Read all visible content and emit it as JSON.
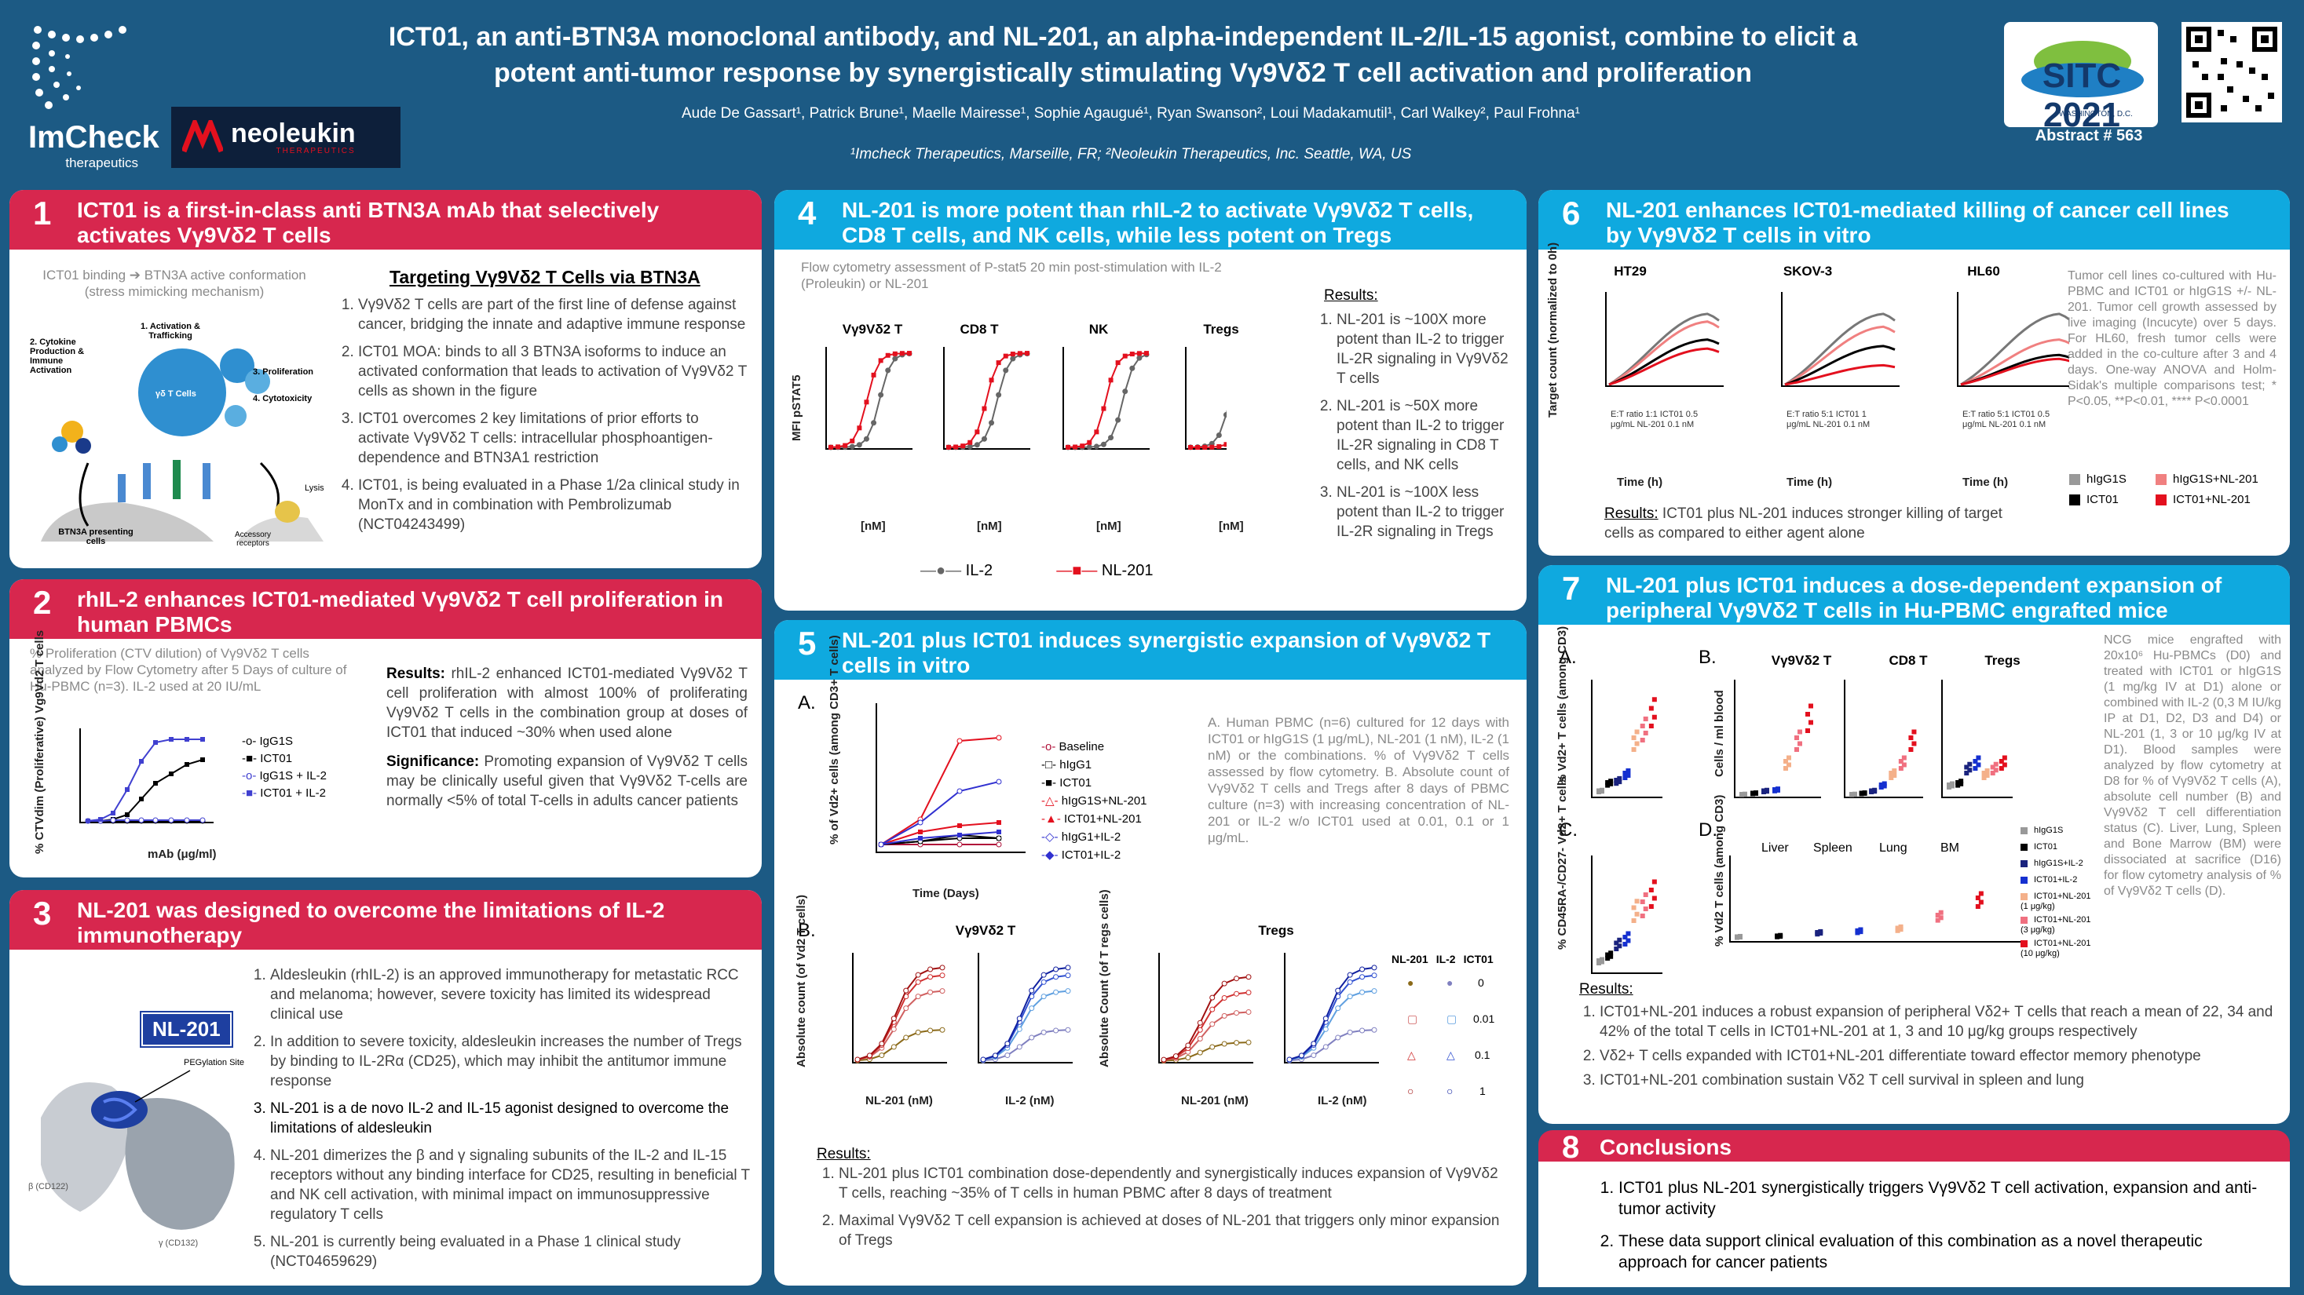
{
  "header": {
    "logo_left": "ImCheck",
    "logo_left_sub": "therapeutics",
    "logo_partner": "neoleukin",
    "logo_partner_sub": "THERAPEUTICS",
    "title_line1": "ICT01, an anti-BTN3A monoclonal antibody, and NL-201, an alpha-independent IL-2/IL-15 agonist, combine to elicit a",
    "title_line2": "potent anti-tumor response by synergistically stimulating Vγ9Vδ2 T cell activation and proliferation",
    "authors": "Aude De Gassart¹, Patrick Brune¹, Maelle Mairesse¹, Sophie Agaugué¹, Ryan Swanson², Loui Madakamutil¹, Carl Walkey², Paul Frohna¹",
    "affiliations": "¹Imcheck Therapeutics, Marseille, FR; ²Neoleukin Therapeutics,  Inc. Seattle, WA, US",
    "sitc_logo": "SITC 2021",
    "sitc_sub": "WASHINGTON, D.C.",
    "abstract": "Abstract # 563"
  },
  "colors": {
    "red": "#d7274e",
    "cyan": "#0fa9df",
    "bg": "#1c5a84",
    "series_il2": "#666666",
    "series_nl201": "#e3101e"
  },
  "p1": {
    "num": "1",
    "title": "ICT01 is a first-in-class anti BTN3A mAb that selectively activates Vγ9Vδ2 T cells",
    "fig_caption": "ICT01 binding ➔ BTN3A active conformation",
    "fig_caption2": "(stress mimicking mechanism)",
    "fig_labels": [
      "1. Activation & Trafficking",
      "2. Cytokine Production & Immune Activation",
      "3. Proliferation",
      "4. Cytotoxicity",
      "γδ T Cells",
      "BTN3A presenting cells",
      "Lysis",
      "Accessory receptors"
    ],
    "subhead": "Targeting Vγ9Vδ2 T Cells via BTN3A",
    "items": [
      "Vγ9Vδ2 T cells are part of the first line of defense against cancer, bridging the innate and adaptive immune response",
      " ICT01 MOA: binds to all 3 BTN3A isoforms to induce an activated conformation that leads to activation of Vγ9Vδ2 T cells as shown in the figure",
      "ICT01 overcomes 2 key limitations of prior efforts to activate Vγ9Vδ2 T cells: intracellular phosphoantigen-dependence and BTN3A1 restriction",
      "ICT01, is being evaluated in a Phase 1/2a clinical study in MonTx and in combination with Pembrolizumab (NCT04243499)"
    ]
  },
  "p2": {
    "num": "2",
    "title": "rhIL-2 enhances ICT01-mediated Vγ9Vδ2 T cell proliferation in human PBMCs",
    "caption": "% Proliferation (CTV dilution) of Vγ9Vδ2 T cells analyzed by Flow Cytometry after 5 Days of culture of Hu-PBMC (n=3). IL-2 used at 20 IU/mL",
    "ylabel": "% CTVdim (Proliferative) Vg9Vd2 T cells",
    "xlabel": "mAb (μg/ml)",
    "results_label": "Results:",
    "results": "rhIL-2 enhanced ICT01-mediated Vγ9Vδ2 T cell proliferation with almost 100% of proliferating Vγ9Vδ2 T cells in the combination group at doses of ICT01 that induced ~30% when used alone",
    "sig_label": "Significance:",
    "sig": "Promoting expansion of Vγ9Vδ2 T cells may be clinically useful given that Vγ9Vδ2 T-cells are normally <5% of total T-cells in adults cancer patients",
    "legend": [
      "IgG1S",
      "ICT01",
      "IgG1S + IL-2",
      "ICT01 + IL-2"
    ]
  },
  "p3": {
    "num": "3",
    "title": "NL-201 was designed to overcome the limitations of IL-2 immunotherapy",
    "badge": "NL-201",
    "site_label": "PEGylation Site",
    "beta": "β (CD122)",
    "gamma": "γ (CD132)",
    "items": [
      "Aldesleukin (rhIL-2) is an approved immunotherapy for metastatic RCC and melanoma; however, severe toxicity has limited its widespread clinical use",
      "In addition to severe toxicity, aldesleukin increases the number of Tregs by binding to IL-2Rα (CD25), which may inhibit the antitumor immune response",
      "NL-201 is a de novo IL-2 and IL-15 agonist designed to overcome the limitations of aldesleukin",
      "NL-201 dimerizes the β and γ signaling subunits of the IL-2 and IL-15 receptors without any binding interface for CD25, resulting in beneficial T and NK cell activation, with minimal impact on immunosuppressive regulatory T cells",
      "NL-201 is currently being evaluated in a Phase 1 clinical study (NCT04659629)"
    ]
  },
  "p4": {
    "num": "4",
    "title": "NL-201 is more potent than rhIL-2 to activate Vγ9Vδ2 T cells, CD8 T cells, and NK cells, while less potent on Tregs",
    "caption": "Flow cytometry assessment of P-stat5 20 min post-stimulation with IL-2 (Proleukin) or NL-201",
    "panels": [
      "Vγ9Vδ2 T",
      "CD8 T",
      "NK",
      "Tregs"
    ],
    "ylabel": "MFI pSTAT5",
    "xlabel": "[nM]",
    "xticks": [
      "0.0001",
      "0.01",
      "1",
      "100",
      "10000"
    ],
    "yticks_a": [
      "0",
      "1000",
      "2000",
      "3000",
      "4000"
    ],
    "yticks_b": [
      "0",
      "2000",
      "4000",
      "6000",
      "8000"
    ],
    "yticks_c": [
      "0",
      "2000",
      "4000",
      "6000"
    ],
    "yticks_d": [
      "0",
      "5000",
      "10000",
      "15000"
    ],
    "legend": [
      "IL-2",
      "NL-201"
    ],
    "results_label": "Results:",
    "results": [
      "NL-201 is ~100X more potent than IL-2 to trigger IL-2R signaling in Vγ9Vδ2 T cells",
      "NL-201 is ~50X more potent than IL-2 to trigger IL-2R signaling in CD8 T cells, and NK cells",
      "NL-201 is ~100X less potent than IL-2 to trigger IL-2R signaling in Tregs"
    ]
  },
  "p5": {
    "num": "5",
    "title": "NL-201 plus ICT01 induces synergistic expansion of Vγ9Vδ2 T cells in vitro",
    "a_label": "A.",
    "a_ylabel": "% of Vd2+ cells (among CD3+ T cells)",
    "a_xlabel": "Time (Days)",
    "a_legend": [
      "Baseline",
      "hIgG1",
      "ICT01",
      "hIgG1S+NL-201",
      "ICT01+NL-201",
      "hIgG1+IL-2",
      "ICT01+IL-2"
    ],
    "caption": "A. Human PBMC (n=6) cultured for 12 days with ICT01 or hIgG1S (1 μg/mL), NL-201 (1 nM), IL-2 (1 nM) or the combinations. % of Vγ9Vδ2 T cells assessed by flow cytometry. B. Absolute count of Vγ9Vδ2 T cells and Tregs after 8 days of PBMC culture (n=3) with increasing concentration of NL-201 or IL-2 w/o ICT01 used at 0.01, 0.1 or 1 μg/mL.",
    "b_label": "B.",
    "b_titles": [
      "Vγ9Vδ2 T",
      "Tregs"
    ],
    "b_ylabel1": "Absolute count (of Vd2 T cells)",
    "b_ylabel2": "Absolute Count (of T regs cells)",
    "b_xlabels": [
      "NL-201 (nM)",
      "IL-2 (nM)",
      "NL-201 (nM)",
      "IL-2 (nM)"
    ],
    "b_table_header": [
      "NL-201",
      "IL-2",
      "ICT01"
    ],
    "b_table_rows": [
      "0",
      "0.01",
      "0.1",
      "1"
    ],
    "results_label": "Results:",
    "results": [
      "NL-201 plus ICT01 combination dose-dependently and synergistically induces expansion of Vγ9Vδ2 T cells, reaching ~35% of T cells in human PBMC after 8 days of treatment",
      "Maximal Vγ9Vδ2 T cell  expansion is achieved at doses of NL-201 that triggers only minor expansion of Tregs"
    ]
  },
  "p6": {
    "num": "6",
    "title": "NL-201 enhances ICT01-mediated killing of cancer cell lines by Vγ9Vδ2 T cells in vitro",
    "panels": [
      "HT29",
      "SKOV-3",
      "HL60"
    ],
    "ylabel": "Target count (normalized to 0h)",
    "xlabel": "Time (h)",
    "conds": [
      "E:T ratio 1:1 ICT01 0.5 μg/mL NL-201 0.1 nM",
      "E:T ratio 5:1 ICT01 1 μg/mL NL-201 0.1 nM",
      "E:T ratio 5:1 ICT01 0.5 μg/mL NL-201 0.1 nM"
    ],
    "caption": "Tumor cell lines co-cultured with Hu-PBMC and ICT01 or hIgG1S +/- NL-201. Tumor cell growth assessed by live imaging (Incucyte) over 5 days. For HL60, fresh tumor cells were added in the co-culture after 3 and 4 days. One-way ANOVA and Holm-Sidak's multiple comparisons test; * P<0.05, **P<0.01, **** P<0.0001",
    "legend": [
      "hIgG1S",
      "hIgG1S+NL-201",
      "ICT01",
      "ICT01+NL-201"
    ],
    "results_label": "Results:",
    "results": "ICT01 plus NL-201 induces stronger killing of target cells as compared to either agent alone"
  },
  "p7": {
    "num": "7",
    "title": "NL-201 plus ICT01 induces a dose-dependent expansion of peripheral Vγ9Vδ2 T cells in Hu-PBMC engrafted mice",
    "labels": [
      "A.",
      "B.",
      "C.",
      "D."
    ],
    "a_ylabel": "% Vd2+ T cells (among CD3)",
    "b_titles": [
      "Vγ9Vδ2 T",
      "CD8 T",
      "Tregs"
    ],
    "b_ylabel": "Cells / ml blood",
    "c_ylabel": "% CD45RA-/CD27- Vd2+ T cells",
    "d_ylabel": "% Vd2 T cells (among CD3)",
    "d_groups": [
      "Liver",
      "Spleen",
      "Lung",
      "BM"
    ],
    "legend": [
      "hIgG1S",
      "ICT01",
      "hIgG1S+IL-2",
      "ICT01+IL-2",
      "ICT01+NL-201 (1 μg/kg)",
      "ICT01+NL-201 (3 μg/kg)",
      "ICT01+NL-201 (10 μg/kg)"
    ],
    "caption": "NCG mice engrafted with 20x10⁶ Hu-PBMCs (D0) and treated with ICT01 or hIgG1S (1 mg/kg IV at D1) alone or combined with IL-2 (0,3 M IU/kg IP at D1, D2, D3 and D4) or NL-201 (1, 3 or 10 μg/kg IV at D1). Blood samples were analyzed by flow cytometry at D8 for % of Vγ9Vδ2 T cells (A), absolute cell number (B) and Vγ9Vδ2 T cell differentiation status (C). Liver, Lung, Spleen and Bone Marrow (BM) were dissociated at sacrifice (D16) for flow cytometry analysis of % of Vγ9Vδ2 T cells (D).",
    "results_label": "Results:",
    "results": [
      "ICT01+NL-201 induces a robust expansion of peripheral Vδ2+ T cells that reach a mean of 22, 34 and 42% of the total T cells in ICT01+NL-201 at 1, 3 and 10 μg/kg groups respectively",
      "Vδ2+ T cells expanded with ICT01+NL-201 differentiate toward effector memory phenotype",
      "ICT01+NL-201 combination sustain Vδ2 T cell survival in spleen and lung"
    ]
  },
  "p8": {
    "num": "8",
    "title": "Conclusions",
    "items": [
      "ICT01 plus NL-201 synergistically triggers Vγ9Vδ2 T cell activation, expansion and anti-tumor activity",
      "These data support clinical evaluation of this combination as a novel therapeutic approach for cancer patients"
    ]
  }
}
